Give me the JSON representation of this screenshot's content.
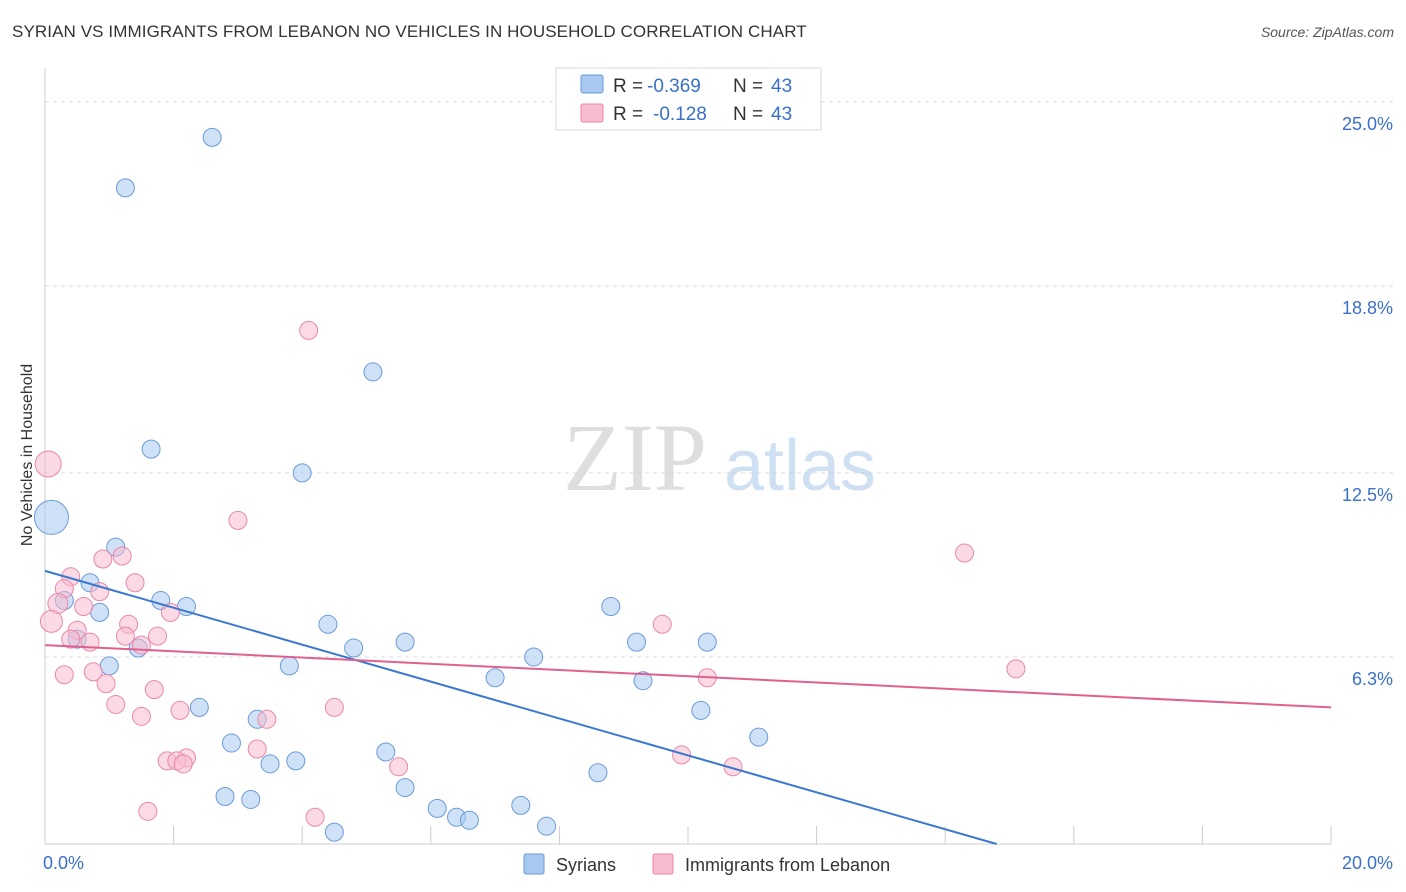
{
  "title": "SYRIAN VS IMMIGRANTS FROM LEBANON NO VEHICLES IN HOUSEHOLD CORRELATION CHART",
  "source": "Source: ZipAtlas.com",
  "watermark": {
    "zip": "ZIP",
    "atlas": "atlas"
  },
  "chart_data": {
    "type": "scatter",
    "ylabel": "No Vehicles in Household",
    "xlim": [
      0,
      20
    ],
    "ylim": [
      0,
      25.8
    ],
    "x_tick_labels": [
      "0.0%",
      "20.0%"
    ],
    "y_ticks": [
      6.3,
      12.5,
      18.8,
      25.0
    ],
    "y_tick_labels": [
      "6.3%",
      "12.5%",
      "18.8%",
      "25.0%"
    ],
    "grid": true,
    "legend_position": "bottom",
    "stats": [
      {
        "r_label": "R =",
        "r_value": "-0.369",
        "n_label": "N =",
        "n_value": "43"
      },
      {
        "r_label": "R =",
        "r_value": "-0.128",
        "n_label": "N =",
        "n_value": "43"
      }
    ],
    "series": [
      {
        "name": "Syrians",
        "color": "#a8c8f0",
        "stroke": "#6a9bd8",
        "trend_color": "#3a78d0",
        "trend": [
          [
            0,
            9.2
          ],
          [
            14.8,
            0
          ]
        ],
        "points": [
          [
            2.6,
            23.8,
            9
          ],
          [
            1.25,
            22.1,
            9
          ],
          [
            5.1,
            15.9,
            9
          ],
          [
            1.65,
            13.3,
            9
          ],
          [
            4.0,
            12.5,
            9
          ],
          [
            0.1,
            11.0,
            17
          ],
          [
            1.1,
            10.0,
            9
          ],
          [
            0.7,
            8.8,
            9
          ],
          [
            0.3,
            8.2,
            9
          ],
          [
            1.8,
            8.2,
            9
          ],
          [
            2.2,
            8.0,
            9
          ],
          [
            0.85,
            7.8,
            9
          ],
          [
            4.4,
            7.4,
            9
          ],
          [
            0.5,
            6.9,
            9
          ],
          [
            5.6,
            6.8,
            9
          ],
          [
            1.45,
            6.6,
            9
          ],
          [
            4.8,
            6.6,
            9
          ],
          [
            8.8,
            8.0,
            9
          ],
          [
            9.2,
            6.8,
            9
          ],
          [
            10.3,
            6.8,
            9
          ],
          [
            1.0,
            6.0,
            9
          ],
          [
            3.8,
            6.0,
            9
          ],
          [
            7.6,
            6.3,
            9
          ],
          [
            7.0,
            5.6,
            9
          ],
          [
            9.3,
            5.5,
            9
          ],
          [
            2.4,
            4.6,
            9
          ],
          [
            3.3,
            4.2,
            9
          ],
          [
            10.2,
            4.5,
            9
          ],
          [
            11.1,
            3.6,
            9
          ],
          [
            2.9,
            3.4,
            9
          ],
          [
            5.3,
            3.1,
            9
          ],
          [
            3.5,
            2.7,
            9
          ],
          [
            3.9,
            2.8,
            9
          ],
          [
            8.6,
            2.4,
            9
          ],
          [
            5.6,
            1.9,
            9
          ],
          [
            2.8,
            1.6,
            9
          ],
          [
            3.2,
            1.5,
            9
          ],
          [
            6.1,
            1.2,
            9
          ],
          [
            7.4,
            1.3,
            9
          ],
          [
            6.4,
            0.9,
            9
          ],
          [
            6.6,
            0.8,
            9
          ],
          [
            7.8,
            0.6,
            9
          ],
          [
            4.5,
            0.4,
            9
          ]
        ]
      },
      {
        "name": "Immigrants from Lebanon",
        "color": "#f8bcd0",
        "stroke": "#e888a8",
        "trend_color": "#e06090",
        "trend": [
          [
            0,
            6.7
          ],
          [
            20,
            4.6
          ]
        ],
        "points": [
          [
            4.1,
            17.3,
            9
          ],
          [
            0.05,
            12.8,
            13
          ],
          [
            3.0,
            10.9,
            9
          ],
          [
            14.3,
            9.8,
            9
          ],
          [
            0.9,
            9.6,
            9
          ],
          [
            1.2,
            9.7,
            9
          ],
          [
            0.4,
            9.0,
            9
          ],
          [
            0.3,
            8.6,
            9
          ],
          [
            0.85,
            8.5,
            9
          ],
          [
            1.4,
            8.8,
            9
          ],
          [
            0.2,
            8.1,
            10
          ],
          [
            0.6,
            8.0,
            9
          ],
          [
            1.95,
            7.8,
            9
          ],
          [
            0.1,
            7.5,
            11
          ],
          [
            1.3,
            7.4,
            9
          ],
          [
            0.5,
            7.2,
            9
          ],
          [
            1.25,
            7.0,
            9
          ],
          [
            1.75,
            7.0,
            9
          ],
          [
            0.4,
            6.9,
            9
          ],
          [
            0.7,
            6.8,
            9
          ],
          [
            1.5,
            6.7,
            9
          ],
          [
            9.6,
            7.4,
            9
          ],
          [
            15.1,
            5.9,
            9
          ],
          [
            10.3,
            5.6,
            9
          ],
          [
            0.3,
            5.7,
            9
          ],
          [
            0.75,
            5.8,
            9
          ],
          [
            0.95,
            5.4,
            9
          ],
          [
            1.7,
            5.2,
            9
          ],
          [
            1.1,
            4.7,
            9
          ],
          [
            2.1,
            4.5,
            9
          ],
          [
            1.5,
            4.3,
            9
          ],
          [
            3.45,
            4.2,
            9
          ],
          [
            4.5,
            4.6,
            9
          ],
          [
            3.3,
            3.2,
            9
          ],
          [
            2.2,
            2.9,
            9
          ],
          [
            1.9,
            2.8,
            9
          ],
          [
            2.05,
            2.8,
            9
          ],
          [
            2.15,
            2.7,
            9
          ],
          [
            5.5,
            2.6,
            9
          ],
          [
            9.9,
            3.0,
            9
          ],
          [
            10.7,
            2.6,
            9
          ],
          [
            1.6,
            1.1,
            9
          ],
          [
            4.2,
            0.9,
            9
          ]
        ]
      }
    ]
  }
}
